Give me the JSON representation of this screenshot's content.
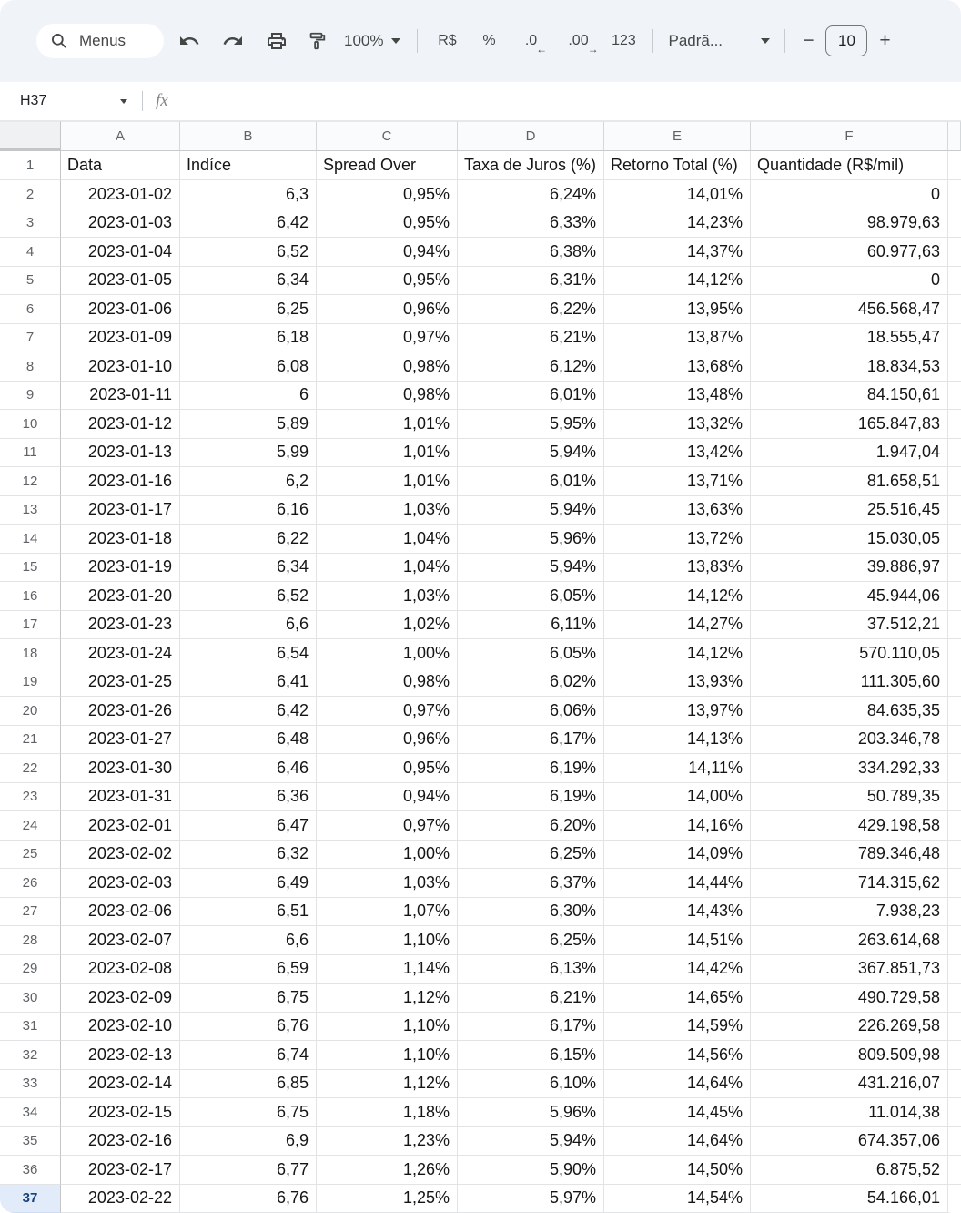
{
  "toolbar": {
    "menus_label": "Menus",
    "zoom_value": "100%",
    "currency_label": "R$",
    "percent_label": "%",
    "decrease_decimal_label": ".0",
    "decrease_decimal_arrow": "←",
    "increase_decimal_label": ".00",
    "increase_decimal_arrow": "→",
    "more_formats_label": "123",
    "font_name": "Padrã...",
    "minus_label": "−",
    "font_size_value": "10",
    "plus_label": "+"
  },
  "formula_bar": {
    "name_box_value": "H37",
    "fx_label": "fx"
  },
  "icons": {
    "search": "magnifier",
    "undo": "curved-arrow-left",
    "redo": "curved-arrow-right",
    "print": "printer",
    "paint_format": "paint-roller",
    "caret": "triangle-down"
  },
  "colors": {
    "toolbar_bg": "#f0f4f9",
    "icon": "#444746",
    "grid_line": "#e2e3e4",
    "header_text": "#5f6368",
    "selected_row_bg": "#e1ebfa",
    "selected_row_text": "#17427d"
  },
  "grid": {
    "column_letters": [
      "A",
      "B",
      "C",
      "D",
      "E",
      "F"
    ],
    "headers": [
      "Data",
      "Indíce",
      "Spread Over",
      "Taxa de Juros (%)",
      "Retorno Total (%)",
      "Quantidade (R$/mil)"
    ],
    "header_row_number": "1",
    "selected_row": "37",
    "rows": [
      [
        "2",
        "2023-01-02",
        "6,3",
        "0,95%",
        "6,24%",
        "14,01%",
        "0"
      ],
      [
        "3",
        "2023-01-03",
        "6,42",
        "0,95%",
        "6,33%",
        "14,23%",
        "98.979,63"
      ],
      [
        "4",
        "2023-01-04",
        "6,52",
        "0,94%",
        "6,38%",
        "14,37%",
        "60.977,63"
      ],
      [
        "5",
        "2023-01-05",
        "6,34",
        "0,95%",
        "6,31%",
        "14,12%",
        "0"
      ],
      [
        "6",
        "2023-01-06",
        "6,25",
        "0,96%",
        "6,22%",
        "13,95%",
        "456.568,47"
      ],
      [
        "7",
        "2023-01-09",
        "6,18",
        "0,97%",
        "6,21%",
        "13,87%",
        "18.555,47"
      ],
      [
        "8",
        "2023-01-10",
        "6,08",
        "0,98%",
        "6,12%",
        "13,68%",
        "18.834,53"
      ],
      [
        "9",
        "2023-01-11",
        "6",
        "0,98%",
        "6,01%",
        "13,48%",
        "84.150,61"
      ],
      [
        "10",
        "2023-01-12",
        "5,89",
        "1,01%",
        "5,95%",
        "13,32%",
        "165.847,83"
      ],
      [
        "11",
        "2023-01-13",
        "5,99",
        "1,01%",
        "5,94%",
        "13,42%",
        "1.947,04"
      ],
      [
        "12",
        "2023-01-16",
        "6,2",
        "1,01%",
        "6,01%",
        "13,71%",
        "81.658,51"
      ],
      [
        "13",
        "2023-01-17",
        "6,16",
        "1,03%",
        "5,94%",
        "13,63%",
        "25.516,45"
      ],
      [
        "14",
        "2023-01-18",
        "6,22",
        "1,04%",
        "5,96%",
        "13,72%",
        "15.030,05"
      ],
      [
        "15",
        "2023-01-19",
        "6,34",
        "1,04%",
        "5,94%",
        "13,83%",
        "39.886,97"
      ],
      [
        "16",
        "2023-01-20",
        "6,52",
        "1,03%",
        "6,05%",
        "14,12%",
        "45.944,06"
      ],
      [
        "17",
        "2023-01-23",
        "6,6",
        "1,02%",
        "6,11%",
        "14,27%",
        "37.512,21"
      ],
      [
        "18",
        "2023-01-24",
        "6,54",
        "1,00%",
        "6,05%",
        "14,12%",
        "570.110,05"
      ],
      [
        "19",
        "2023-01-25",
        "6,41",
        "0,98%",
        "6,02%",
        "13,93%",
        "111.305,60"
      ],
      [
        "20",
        "2023-01-26",
        "6,42",
        "0,97%",
        "6,06%",
        "13,97%",
        "84.635,35"
      ],
      [
        "21",
        "2023-01-27",
        "6,48",
        "0,96%",
        "6,17%",
        "14,13%",
        "203.346,78"
      ],
      [
        "22",
        "2023-01-30",
        "6,46",
        "0,95%",
        "6,19%",
        "14,11%",
        "334.292,33"
      ],
      [
        "23",
        "2023-01-31",
        "6,36",
        "0,94%",
        "6,19%",
        "14,00%",
        "50.789,35"
      ],
      [
        "24",
        "2023-02-01",
        "6,47",
        "0,97%",
        "6,20%",
        "14,16%",
        "429.198,58"
      ],
      [
        "25",
        "2023-02-02",
        "6,32",
        "1,00%",
        "6,25%",
        "14,09%",
        "789.346,48"
      ],
      [
        "26",
        "2023-02-03",
        "6,49",
        "1,03%",
        "6,37%",
        "14,44%",
        "714.315,62"
      ],
      [
        "27",
        "2023-02-06",
        "6,51",
        "1,07%",
        "6,30%",
        "14,43%",
        "7.938,23"
      ],
      [
        "28",
        "2023-02-07",
        "6,6",
        "1,10%",
        "6,25%",
        "14,51%",
        "263.614,68"
      ],
      [
        "29",
        "2023-02-08",
        "6,59",
        "1,14%",
        "6,13%",
        "14,42%",
        "367.851,73"
      ],
      [
        "30",
        "2023-02-09",
        "6,75",
        "1,12%",
        "6,21%",
        "14,65%",
        "490.729,58"
      ],
      [
        "31",
        "2023-02-10",
        "6,76",
        "1,10%",
        "6,17%",
        "14,59%",
        "226.269,58"
      ],
      [
        "32",
        "2023-02-13",
        "6,74",
        "1,10%",
        "6,15%",
        "14,56%",
        "809.509,98"
      ],
      [
        "33",
        "2023-02-14",
        "6,85",
        "1,12%",
        "6,10%",
        "14,64%",
        "431.216,07"
      ],
      [
        "34",
        "2023-02-15",
        "6,75",
        "1,18%",
        "5,96%",
        "14,45%",
        "11.014,38"
      ],
      [
        "35",
        "2023-02-16",
        "6,9",
        "1,23%",
        "5,94%",
        "14,64%",
        "674.357,06"
      ],
      [
        "36",
        "2023-02-17",
        "6,77",
        "1,26%",
        "5,90%",
        "14,50%",
        "6.875,52"
      ],
      [
        "37",
        "2023-02-22",
        "6,76",
        "1,25%",
        "5,97%",
        "14,54%",
        "54.166,01"
      ]
    ]
  }
}
